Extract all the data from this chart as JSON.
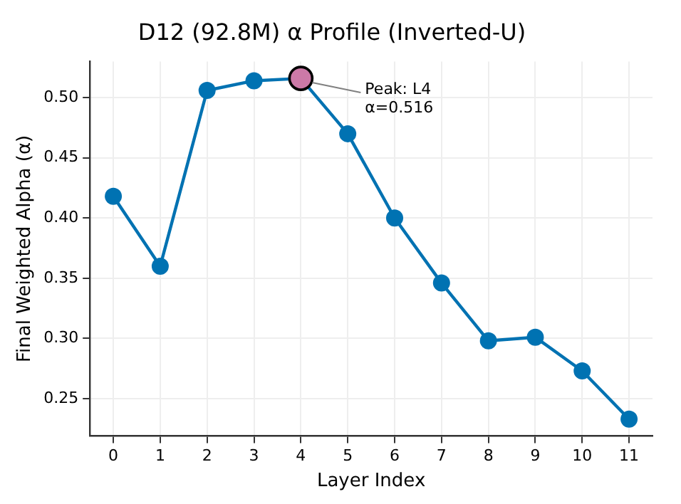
{
  "chart_data": {
    "type": "line",
    "title": "D12 (92.8M) α Profile (Inverted-U)",
    "xlabel": "Layer Index",
    "ylabel": "Final Weighted Alpha (α)",
    "categories": [
      "0",
      "1",
      "2",
      "3",
      "4",
      "5",
      "6",
      "7",
      "8",
      "9",
      "10",
      "11"
    ],
    "series": [
      {
        "color": "#0072b2",
        "values": [
          0.418,
          0.36,
          0.506,
          0.514,
          0.516,
          0.47,
          0.4,
          0.346,
          0.298,
          0.301,
          0.273,
          0.233
        ]
      },
      {
        "type": "scatter",
        "color": "#cc79a7",
        "x": [
          "4"
        ],
        "values": [
          0.516
        ]
      }
    ],
    "annotations": [
      {
        "text": "Peak: L4\nα=0.516",
        "x": "4",
        "y": 0.516
      }
    ],
    "ylim": [
      0.219,
      0.53
    ],
    "yticks": [
      {
        "value": 0.25,
        "label": "0.25"
      },
      {
        "value": 0.3,
        "label": "0.30"
      },
      {
        "value": 0.35,
        "label": "0.35"
      },
      {
        "value": 0.4,
        "label": "0.40"
      },
      {
        "value": 0.45,
        "label": "0.45"
      },
      {
        "value": 0.5,
        "label": "0.50"
      }
    ],
    "grid": true,
    "legend": false,
    "marker": "circle",
    "line_style": "solid"
  }
}
